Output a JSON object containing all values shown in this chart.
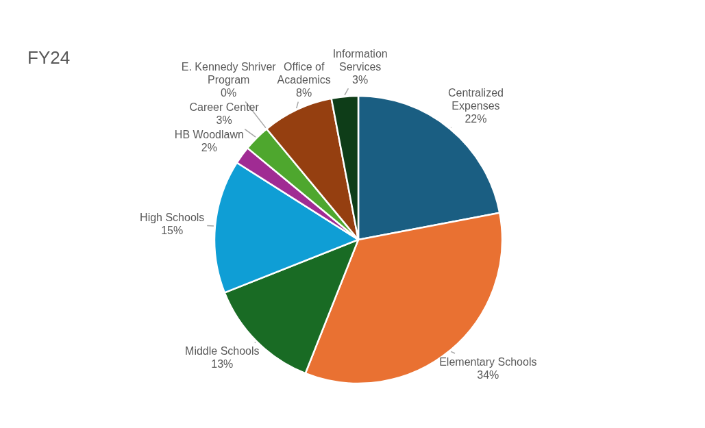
{
  "chart_data": {
    "type": "pie",
    "title": "FY24",
    "categories": [
      "Centralized Expenses",
      "Elementary Schools",
      "Middle Schools",
      "High Schools",
      "HB Woodlawn",
      "Career Center",
      "E. Kennedy Shriver Program",
      "Office of Academics",
      "Information Services"
    ],
    "values": [
      22,
      34,
      13,
      15,
      2,
      3,
      0,
      8,
      3
    ],
    "value_labels": [
      "22%",
      "34%",
      "13%",
      "15%",
      "2%",
      "3%",
      "0%",
      "8%",
      "3%"
    ],
    "colors": [
      "#1a5e82",
      "#e97132",
      "#196b24",
      "#0f9ed5",
      "#a02b93",
      "#4ea72e",
      "#5b9bd5",
      "#953f10",
      "#0e3d18"
    ]
  }
}
